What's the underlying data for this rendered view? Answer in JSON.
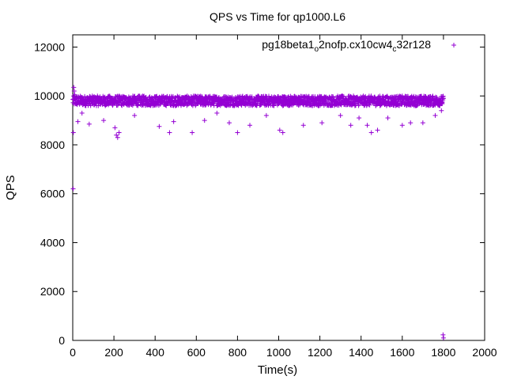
{
  "chart_data": {
    "type": "scatter",
    "title": "QPS vs Time for qp1000.L6",
    "xlabel": "Time(s)",
    "ylabel": "QPS",
    "xlim": [
      0,
      2000
    ],
    "ylim": [
      0,
      12500
    ],
    "xticks": [
      0,
      200,
      400,
      600,
      800,
      1000,
      1200,
      1400,
      1600,
      1800,
      2000
    ],
    "yticks": [
      0,
      2000,
      4000,
      6000,
      8000,
      10000,
      12000
    ],
    "grid": false,
    "legend_position": "top-right",
    "marker": "plus",
    "color": "#9400d3",
    "series": [
      {
        "name_parts": [
          {
            "text": "pg18beta1",
            "sub": false
          },
          {
            "text": "o",
            "sub": true
          },
          {
            "text": "2nofp.cx10cw4",
            "sub": false
          },
          {
            "text": "c",
            "sub": true
          },
          {
            "text": "32r128",
            "sub": false
          }
        ],
        "time_range": [
          1,
          1800
        ],
        "sample_interval": 1,
        "typical_qps_range": [
          9600,
          10000
        ],
        "dip_points": [
          [
            2,
            6200
          ],
          [
            3,
            8500
          ],
          [
            5,
            10350
          ],
          [
            7,
            10200
          ],
          [
            10,
            10050
          ],
          [
            14,
            9900
          ],
          [
            25,
            8950
          ],
          [
            45,
            9300
          ],
          [
            80,
            8850
          ],
          [
            150,
            9000
          ],
          [
            205,
            8700
          ],
          [
            212,
            8400
          ],
          [
            218,
            8300
          ],
          [
            225,
            8500
          ],
          [
            300,
            9200
          ],
          [
            420,
            8750
          ],
          [
            470,
            8500
          ],
          [
            490,
            8950
          ],
          [
            580,
            8500
          ],
          [
            640,
            9000
          ],
          [
            700,
            9300
          ],
          [
            760,
            8900
          ],
          [
            800,
            8500
          ],
          [
            860,
            8800
          ],
          [
            940,
            9200
          ],
          [
            1005,
            8600
          ],
          [
            1020,
            8500
          ],
          [
            1120,
            8800
          ],
          [
            1210,
            8900
          ],
          [
            1300,
            9200
          ],
          [
            1350,
            8800
          ],
          [
            1390,
            9100
          ],
          [
            1430,
            8800
          ],
          [
            1450,
            8500
          ],
          [
            1480,
            8600
          ],
          [
            1530,
            9100
          ],
          [
            1600,
            8800
          ],
          [
            1640,
            8900
          ],
          [
            1700,
            8900
          ],
          [
            1760,
            9200
          ],
          [
            1790,
            9400
          ],
          [
            1798,
            230
          ],
          [
            1800,
            100
          ]
        ]
      }
    ]
  }
}
